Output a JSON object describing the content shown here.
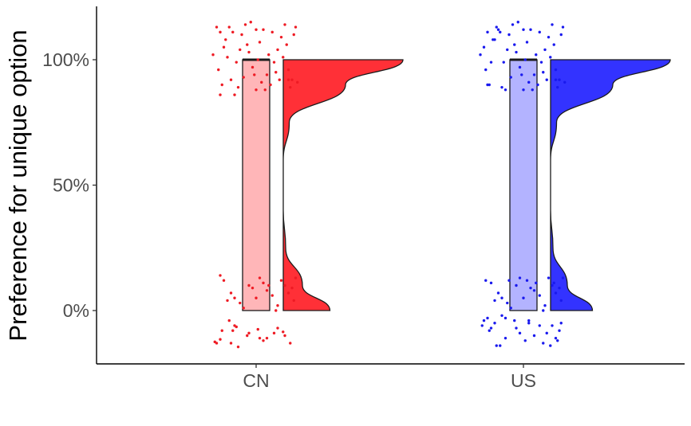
{
  "chart_data": {
    "type": "raincloud",
    "title": "",
    "xlabel": "",
    "ylabel": "Preference for unique option",
    "categories": [
      "CN",
      "US"
    ],
    "y_ticks": [
      0,
      50,
      100
    ],
    "y_tick_labels": [
      "0%",
      "50%",
      "100%"
    ],
    "ylim": [
      -21,
      121
    ],
    "grid": false,
    "legend": "none",
    "series": [
      {
        "category": "CN",
        "fill_color": "#ff3037",
        "box_color": "#ffb6b8",
        "point_color": "#ee1b24",
        "boxplot": {
          "min": 0,
          "q1": 0,
          "median": 100,
          "q3": 100,
          "max": 100
        },
        "density": [
          [
            0,
            0.39
          ],
          [
            10,
            0.16
          ],
          [
            25,
            0.02
          ],
          [
            40,
            0.0
          ],
          [
            50,
            0.0
          ],
          [
            60,
            0.0
          ],
          [
            75,
            0.05
          ],
          [
            90,
            0.52
          ],
          [
            100,
            1.0
          ]
        ],
        "points_low": [
          [
            -0.23,
            -12.5
          ],
          [
            -0.22,
            -13.0
          ],
          [
            -0.2,
            -11.5
          ],
          [
            -0.19,
            -8.0
          ],
          [
            -0.15,
            -4.0
          ],
          [
            -0.14,
            -13.0
          ],
          [
            -0.13,
            -8.0
          ],
          [
            -0.11,
            -6.5
          ],
          [
            -0.1,
            -14.5
          ],
          [
            -0.12,
            -6.0
          ],
          [
            -0.05,
            -10.0
          ],
          [
            -0.04,
            -9.0
          ],
          [
            0.01,
            -7.5
          ],
          [
            0.02,
            -11.0
          ],
          [
            0.04,
            -12.0
          ],
          [
            0.06,
            -11.0
          ],
          [
            0.1,
            -9.0
          ],
          [
            0.12,
            -7.0
          ],
          [
            0.15,
            -8.5
          ],
          [
            0.16,
            -10.0
          ],
          [
            0.19,
            -13.0
          ],
          [
            -0.2,
            14.0
          ],
          [
            -0.18,
            12.0
          ],
          [
            -0.14,
            7.0
          ],
          [
            -0.12,
            5.0
          ],
          [
            -0.09,
            3.0
          ],
          [
            -0.07,
            1.0
          ],
          [
            -0.04,
            10.0
          ],
          [
            -0.02,
            9.0
          ],
          [
            0.02,
            13.0
          ],
          [
            0.04,
            11.0
          ],
          [
            0.06,
            8.0
          ],
          [
            0.09,
            6.0
          ],
          [
            0.12,
            2.0
          ],
          [
            0.14,
            12.0
          ],
          [
            0.16,
            10.0
          ],
          [
            0.18,
            7.0
          ],
          [
            0.21,
            4.0
          ],
          [
            0.22,
            13.0
          ],
          [
            0.11,
            0.0
          ],
          [
            -0.16,
            4.0
          ],
          [
            0.0,
            5.0
          ],
          [
            0.07,
            10.0
          ],
          [
            0.2,
            9.0
          ]
        ],
        "points_high": [
          [
            -0.22,
            113.0
          ],
          [
            -0.2,
            111.0
          ],
          [
            -0.18,
            105.0
          ],
          [
            -0.16,
            101.0
          ],
          [
            -0.14,
            92.0
          ],
          [
            -0.12,
            86.0
          ],
          [
            -0.1,
            89.0
          ],
          [
            -0.08,
            110.0
          ],
          [
            -0.06,
            114.0
          ],
          [
            -0.04,
            103.0
          ],
          [
            -0.02,
            97.0
          ],
          [
            0.0,
            88.0
          ],
          [
            0.02,
            107.0
          ],
          [
            0.04,
            112.0
          ],
          [
            0.06,
            94.0
          ],
          [
            0.08,
            90.0
          ],
          [
            0.1,
            99.0
          ],
          [
            0.12,
            104.0
          ],
          [
            0.14,
            109.0
          ],
          [
            0.16,
            114.0
          ],
          [
            0.18,
            96.0
          ],
          [
            0.2,
            92.0
          ],
          [
            0.22,
            113.0
          ],
          [
            -0.21,
            96.0
          ],
          [
            -0.19,
            90.0
          ],
          [
            -0.17,
            108.0
          ],
          [
            -0.13,
            111.0
          ],
          [
            -0.11,
            99.0
          ],
          [
            -0.07,
            93.0
          ],
          [
            -0.05,
            106.0
          ],
          [
            -0.03,
            115.0
          ],
          [
            0.01,
            100.0
          ],
          [
            0.03,
            91.0
          ],
          [
            0.05,
            88.0
          ],
          [
            0.07,
            102.0
          ],
          [
            0.09,
            111.0
          ],
          [
            0.11,
            95.0
          ],
          [
            0.13,
            92.0
          ],
          [
            0.15,
            101.0
          ],
          [
            0.17,
            106.0
          ],
          [
            0.19,
            89.0
          ],
          [
            0.21,
            110.0
          ],
          [
            -0.15,
            113.0
          ],
          [
            -0.09,
            104.0
          ],
          [
            0.0,
            112.0
          ],
          [
            -0.24,
            102.0
          ],
          [
            0.23,
            91.0
          ],
          [
            -0.01,
            94.0
          ],
          [
            0.18,
            92.0
          ],
          [
            -0.2,
            86.0
          ]
        ]
      },
      {
        "category": "US",
        "fill_color": "#3333ff",
        "box_color": "#b3b3ff",
        "point_color": "#1a1aee",
        "boxplot": {
          "min": 0,
          "q1": 0,
          "median": 100,
          "q3": 100,
          "max": 100
        },
        "density": [
          [
            0,
            0.35
          ],
          [
            10,
            0.14
          ],
          [
            25,
            0.02
          ],
          [
            40,
            0.0
          ],
          [
            50,
            0.0
          ],
          [
            60,
            0.0
          ],
          [
            75,
            0.05
          ],
          [
            90,
            0.52
          ],
          [
            100,
            1.0
          ]
        ],
        "points_low": [
          [
            -0.23,
            -6.0
          ],
          [
            -0.22,
            -4.0
          ],
          [
            -0.2,
            -3.0
          ],
          [
            -0.19,
            -8.0
          ],
          [
            -0.18,
            -7.0
          ],
          [
            -0.16,
            -5.0
          ],
          [
            -0.15,
            -14.0
          ],
          [
            -0.13,
            -14.0
          ],
          [
            -0.12,
            -2.0
          ],
          [
            -0.1,
            -11.0
          ],
          [
            -0.05,
            -4.0
          ],
          [
            -0.04,
            -7.0
          ],
          [
            -0.02,
            -9.0
          ],
          [
            0.01,
            -12.0
          ],
          [
            0.03,
            -5.0
          ],
          [
            0.06,
            -10.0
          ],
          [
            0.09,
            -6.0
          ],
          [
            0.11,
            -13.0
          ],
          [
            0.13,
            -9.0
          ],
          [
            0.15,
            -14.0
          ],
          [
            0.16,
            -6.0
          ],
          [
            0.18,
            -11.0
          ],
          [
            0.2,
            -8.0
          ],
          [
            0.21,
            -5.0
          ],
          [
            -0.21,
            12.0
          ],
          [
            -0.18,
            11.0
          ],
          [
            -0.14,
            7.0
          ],
          [
            -0.12,
            5.0
          ],
          [
            -0.09,
            3.0
          ],
          [
            -0.07,
            1.0
          ],
          [
            -0.04,
            10.0
          ],
          [
            -0.02,
            13.0
          ],
          [
            0.02,
            12.0
          ],
          [
            0.04,
            9.0
          ],
          [
            0.06,
            8.0
          ],
          [
            0.09,
            6.0
          ],
          [
            0.12,
            2.0
          ],
          [
            0.14,
            13.0
          ],
          [
            0.16,
            10.0
          ],
          [
            0.18,
            7.0
          ],
          [
            0.21,
            4.0
          ],
          [
            0.22,
            13.0
          ],
          [
            0.11,
            0.0
          ],
          [
            -0.16,
            4.0
          ],
          [
            0.0,
            5.0
          ],
          [
            0.07,
            11.0
          ],
          [
            0.2,
            9.0
          ],
          [
            -0.08,
            12.0
          ],
          [
            0.17,
            11.0
          ],
          [
            -0.1,
            -3.0
          ],
          [
            0.03,
            -4.0
          ],
          [
            0.19,
            -12.0
          ]
        ],
        "points_high": [
          [
            -0.22,
            105.0
          ],
          [
            -0.2,
            111.0
          ],
          [
            -0.18,
            99.0
          ],
          [
            -0.16,
            108.0
          ],
          [
            -0.14,
            112.0
          ],
          [
            -0.12,
            89.0
          ],
          [
            -0.1,
            88.0
          ],
          [
            -0.08,
            110.0
          ],
          [
            -0.06,
            114.0
          ],
          [
            -0.04,
            103.0
          ],
          [
            -0.02,
            97.0
          ],
          [
            0.0,
            88.0
          ],
          [
            0.02,
            107.0
          ],
          [
            0.04,
            112.0
          ],
          [
            0.06,
            94.0
          ],
          [
            0.08,
            90.0
          ],
          [
            0.1,
            99.0
          ],
          [
            0.12,
            104.0
          ],
          [
            0.14,
            109.0
          ],
          [
            0.16,
            114.0
          ],
          [
            0.18,
            96.0
          ],
          [
            0.2,
            92.0
          ],
          [
            0.22,
            113.0
          ],
          [
            -0.21,
            96.0
          ],
          [
            -0.19,
            90.0
          ],
          [
            -0.17,
            108.0
          ],
          [
            -0.13,
            111.0
          ],
          [
            -0.11,
            99.0
          ],
          [
            -0.07,
            93.0
          ],
          [
            -0.05,
            106.0
          ],
          [
            -0.03,
            115.0
          ],
          [
            0.01,
            100.0
          ],
          [
            0.03,
            91.0
          ],
          [
            0.05,
            88.0
          ],
          [
            0.07,
            102.0
          ],
          [
            0.09,
            111.0
          ],
          [
            0.11,
            95.0
          ],
          [
            0.13,
            92.0
          ],
          [
            0.15,
            101.0
          ],
          [
            0.17,
            106.0
          ],
          [
            0.19,
            89.0
          ],
          [
            0.21,
            110.0
          ],
          [
            -0.15,
            113.0
          ],
          [
            -0.09,
            104.0
          ],
          [
            0.0,
            112.0
          ],
          [
            -0.24,
            102.0
          ],
          [
            0.23,
            91.0
          ],
          [
            -0.01,
            94.0
          ],
          [
            0.18,
            92.0
          ],
          [
            -0.2,
            90.0
          ]
        ]
      }
    ]
  }
}
